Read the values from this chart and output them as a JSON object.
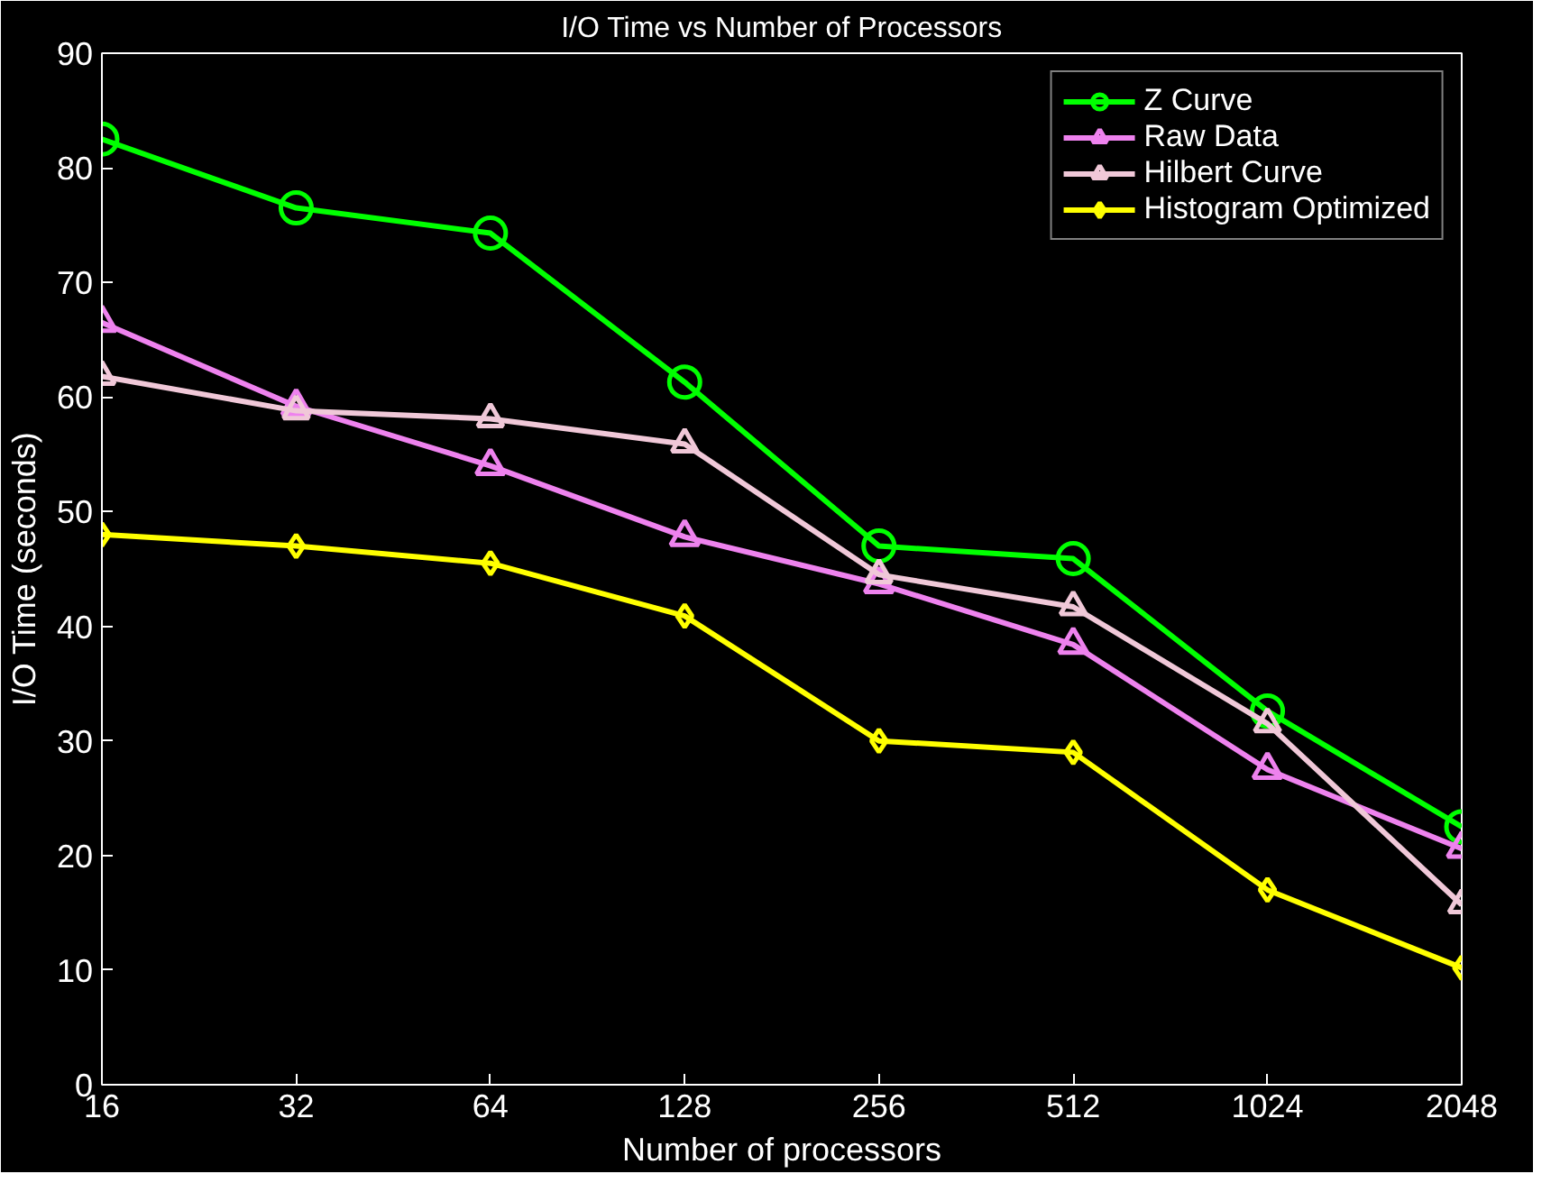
{
  "chart_data": {
    "type": "line",
    "title": "I/O Time vs Number of Processors",
    "xlabel": "Number of processors",
    "ylabel": "I/O Time (seconds)",
    "x": [
      16,
      32,
      64,
      128,
      256,
      512,
      1024,
      2048
    ],
    "log": "x",
    "xlim": [
      16,
      2048
    ],
    "xticks": [
      16,
      32,
      64,
      128,
      256,
      512,
      1024,
      2048
    ],
    "ylim": [
      0,
      90
    ],
    "yticks": [
      0,
      10,
      20,
      30,
      40,
      50,
      60,
      70,
      80,
      90
    ],
    "grid": false,
    "legend": "top right",
    "line_style": "solid",
    "series": [
      {
        "name": "Z Curve",
        "color": "#00ff00",
        "marker": "circle",
        "values": [
          82.5,
          76.5,
          74.3,
          61.3,
          47,
          45.9,
          32.6,
          22.5
        ]
      },
      {
        "name": "Raw Data",
        "color": "#ee82ee",
        "marker": "triangle",
        "values": [
          66.5,
          59.2,
          54,
          47.8,
          43.7,
          38.4,
          27.5,
          20.6
        ]
      },
      {
        "name": "Hilbert Curve",
        "color": "#f0c8d8",
        "marker": "triangle",
        "values": [
          61.8,
          58.8,
          58.1,
          55.9,
          44.5,
          41.7,
          31.5,
          15.7
        ]
      },
      {
        "name": "Histogram Optimized",
        "color": "#ffff00",
        "marker": "diamond",
        "values": [
          48,
          47,
          45.5,
          40.9,
          30,
          29,
          17,
          10.2
        ]
      }
    ]
  }
}
